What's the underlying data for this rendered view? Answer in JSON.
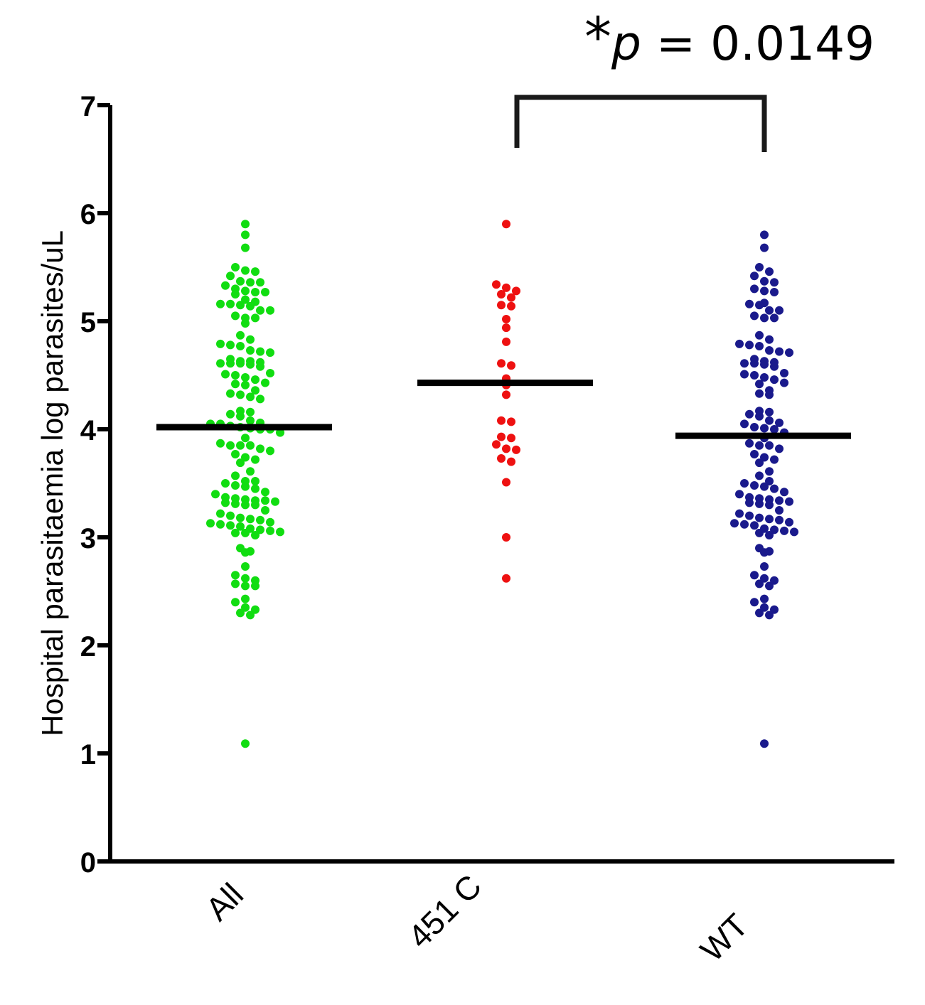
{
  "chart_data": {
    "type": "scatter",
    "subtype": "dot-plot with median lines",
    "ylabel": "Hospital parasitaemia log parasites/uL",
    "ylim": [
      0,
      7
    ],
    "yticks": [
      0,
      1,
      2,
      3,
      4,
      5,
      6,
      7
    ],
    "categories": [
      "All",
      "451 C",
      "WT"
    ],
    "annotation": {
      "star": "*",
      "p_symbol": "p",
      "rest": " = 0.0149",
      "between": [
        "451 C",
        "WT"
      ]
    },
    "series": [
      {
        "category": "All",
        "color": "#11dd11",
        "median": 4.02,
        "values": [
          5.9,
          5.8,
          5.68,
          5.5,
          5.47,
          5.46,
          5.42,
          5.37,
          5.36,
          5.36,
          5.33,
          5.3,
          5.28,
          5.27,
          5.27,
          5.25,
          5.2,
          5.18,
          5.16,
          5.16,
          5.15,
          5.14,
          5.1,
          5.1,
          5.05,
          5.03,
          5.03,
          4.98,
          4.87,
          4.83,
          4.79,
          4.78,
          4.77,
          4.73,
          4.72,
          4.71,
          4.65,
          4.63,
          4.63,
          4.62,
          4.61,
          4.61,
          4.61,
          4.6,
          4.58,
          4.52,
          4.51,
          4.5,
          4.48,
          4.46,
          4.43,
          4.42,
          4.41,
          4.36,
          4.33,
          4.32,
          4.3,
          4.28,
          4.17,
          4.16,
          4.14,
          4.12,
          4.08,
          4.06,
          4.05,
          4.05,
          4.03,
          4.02,
          4.01,
          4.0,
          4.0,
          3.97,
          3.92,
          3.87,
          3.85,
          3.85,
          3.85,
          3.82,
          3.8,
          3.77,
          3.74,
          3.72,
          3.69,
          3.61,
          3.57,
          3.52,
          3.52,
          3.5,
          3.48,
          3.47,
          3.45,
          3.42,
          3.4,
          3.37,
          3.36,
          3.35,
          3.34,
          3.34,
          3.33,
          3.32,
          3.31,
          3.3,
          3.3,
          3.25,
          3.22,
          3.2,
          3.18,
          3.17,
          3.16,
          3.14,
          3.13,
          3.12,
          3.11,
          3.1,
          3.08,
          3.07,
          3.06,
          3.05,
          3.04,
          3.04,
          3.02,
          2.9,
          2.87,
          2.86,
          2.73,
          2.65,
          2.62,
          2.6,
          2.57,
          2.55,
          2.55,
          2.43,
          2.4,
          2.35,
          2.33,
          2.3,
          2.28,
          1.09
        ]
      },
      {
        "category": "451 C",
        "color": "#ee1111",
        "median": 4.43,
        "values": [
          5.9,
          5.34,
          5.31,
          5.28,
          5.25,
          5.22,
          5.15,
          5.14,
          5.02,
          4.94,
          4.81,
          4.61,
          4.59,
          4.47,
          4.41,
          4.32,
          4.08,
          4.07,
          3.93,
          3.92,
          3.86,
          3.82,
          3.81,
          3.73,
          3.7,
          3.51,
          3.0,
          2.62
        ]
      },
      {
        "category": "WT",
        "color": "#1a1a8c",
        "median": 3.94,
        "values": [
          5.8,
          5.68,
          5.5,
          5.46,
          5.42,
          5.37,
          5.36,
          5.3,
          5.28,
          5.27,
          5.17,
          5.16,
          5.15,
          5.1,
          5.1,
          5.05,
          5.03,
          5.03,
          4.87,
          4.83,
          4.79,
          4.78,
          4.77,
          4.73,
          4.72,
          4.71,
          4.65,
          4.63,
          4.62,
          4.61,
          4.61,
          4.6,
          4.58,
          4.52,
          4.51,
          4.5,
          4.48,
          4.46,
          4.43,
          4.42,
          4.36,
          4.33,
          4.32,
          4.17,
          4.16,
          4.14,
          4.12,
          4.08,
          4.06,
          4.05,
          4.02,
          4.01,
          4.0,
          3.97,
          3.92,
          3.87,
          3.85,
          3.85,
          3.82,
          3.77,
          3.74,
          3.72,
          3.69,
          3.61,
          3.57,
          3.52,
          3.5,
          3.48,
          3.47,
          3.45,
          3.42,
          3.4,
          3.37,
          3.36,
          3.35,
          3.34,
          3.33,
          3.32,
          3.31,
          3.3,
          3.25,
          3.22,
          3.2,
          3.18,
          3.17,
          3.16,
          3.14,
          3.13,
          3.12,
          3.11,
          3.08,
          3.07,
          3.06,
          3.05,
          3.04,
          3.02,
          2.9,
          2.87,
          2.86,
          2.73,
          2.65,
          2.62,
          2.6,
          2.57,
          2.55,
          2.43,
          2.4,
          2.35,
          2.33,
          2.3,
          2.28,
          1.09
        ]
      }
    ]
  }
}
